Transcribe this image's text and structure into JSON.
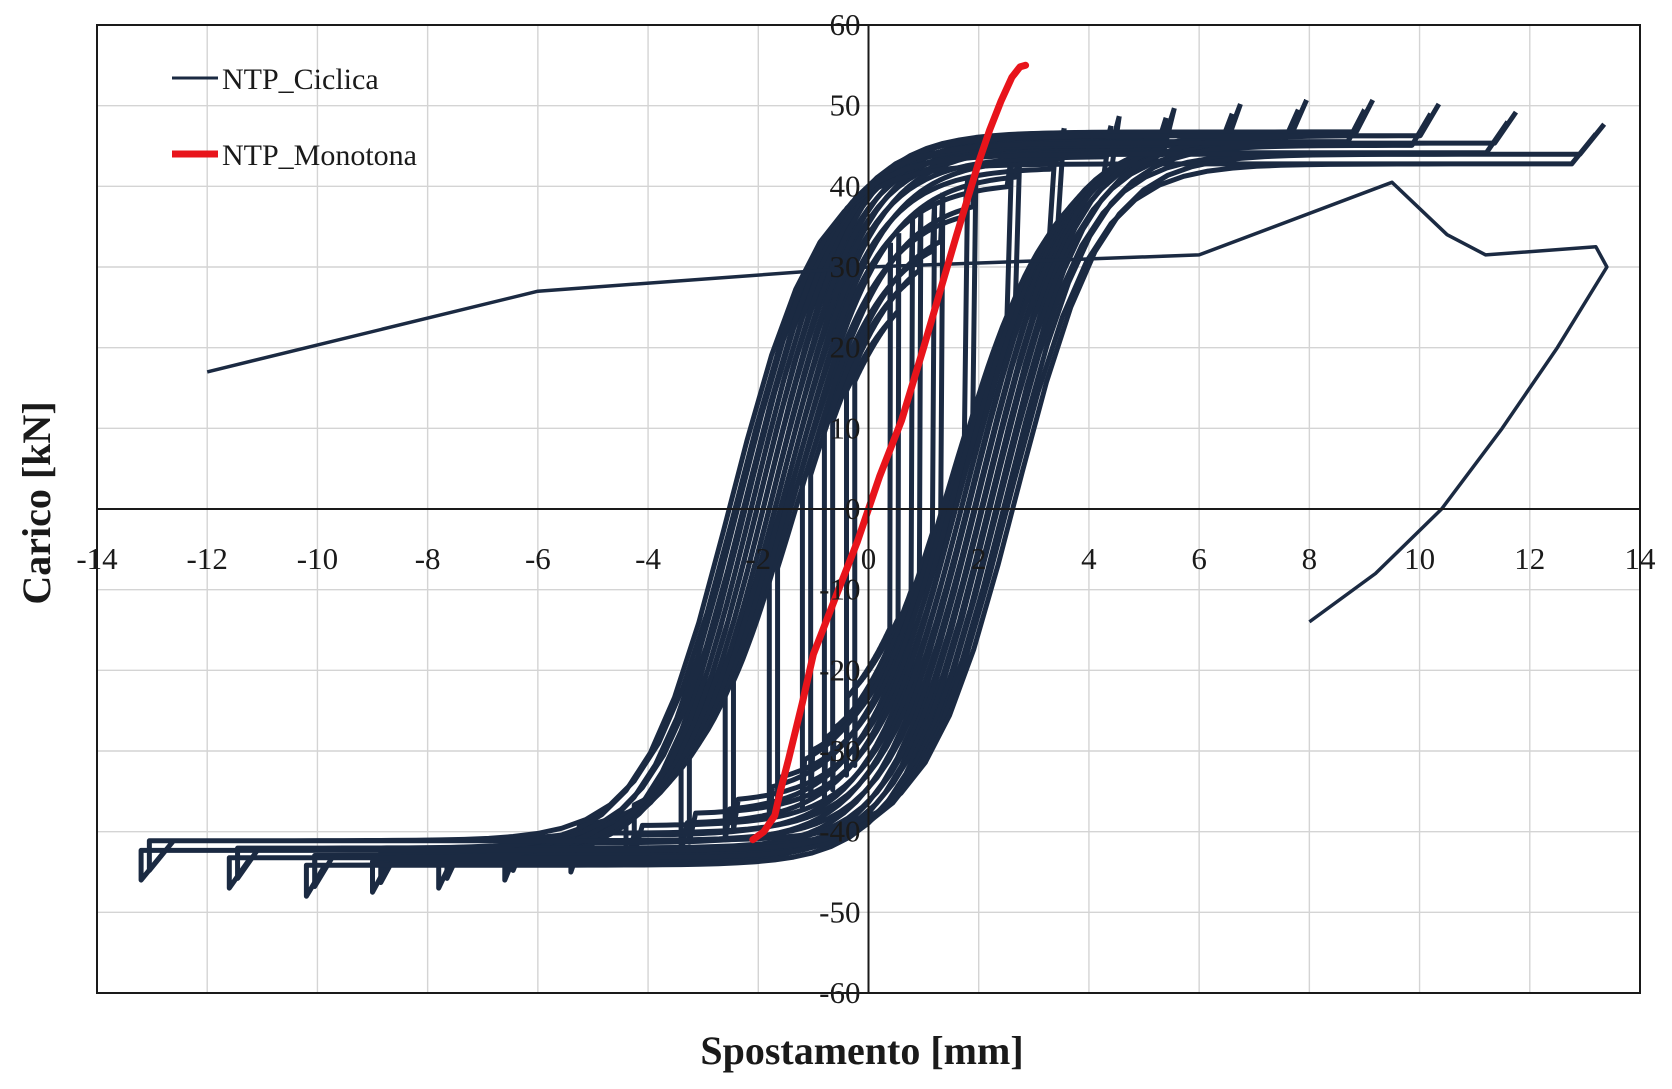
{
  "chart_data": {
    "type": "line",
    "title": "",
    "xlabel": "Spostamento [mm]",
    "ylabel": "Carico [kN]",
    "xlim": [
      -14,
      14
    ],
    "ylim": [
      -60,
      60
    ],
    "xticks": [
      -14,
      -12,
      -10,
      -8,
      -6,
      -4,
      -2,
      0,
      2,
      4,
      6,
      8,
      10,
      12,
      14
    ],
    "yticks": [
      -60,
      -50,
      -40,
      -30,
      -20,
      -10,
      0,
      10,
      20,
      30,
      40,
      50,
      60
    ],
    "x_tick_labels": [
      "-14",
      "-12",
      "-10",
      "-8",
      "-6",
      "-4",
      "-2",
      "0",
      "2",
      "4",
      "6",
      "8",
      "10",
      "12",
      "14"
    ],
    "y_tick_labels": [
      "-60",
      "-50",
      "-40",
      "-30",
      "-20",
      "-10",
      "0",
      "10",
      "20",
      "30",
      "40",
      "50",
      "60"
    ],
    "grid": true,
    "legend_position": "top-left",
    "series": [
      {
        "name": "NTP_Ciclica",
        "color": "#1b2a42",
        "kind": "hysteresis-cycles",
        "cycles": [
          {
            "xmax": 0.4,
            "ymax": 33,
            "xmin": -0.4,
            "ymin": -33
          },
          {
            "xmax": 0.8,
            "ymax": 36,
            "xmin": -0.8,
            "ymin": -36
          },
          {
            "xmax": 1.2,
            "ymax": 38,
            "xmin": -1.2,
            "ymin": -37
          },
          {
            "xmax": 1.8,
            "ymax": 41,
            "xmin": -1.8,
            "ymin": -39
          },
          {
            "xmax": 2.6,
            "ymax": 44,
            "xmin": -2.6,
            "ymin": -41
          },
          {
            "xmax": 3.4,
            "ymax": 46,
            "xmin": -3.4,
            "ymin": -42.5
          },
          {
            "xmax": 4.4,
            "ymax": 47.5,
            "xmin": -4.4,
            "ymin": -44
          },
          {
            "xmax": 5.4,
            "ymax": 48.5,
            "xmin": -5.4,
            "ymin": -45
          },
          {
            "xmax": 6.6,
            "ymax": 49,
            "xmin": -6.6,
            "ymin": -46
          },
          {
            "xmax": 7.8,
            "ymax": 49.5,
            "xmin": -7.8,
            "ymin": -47
          },
          {
            "xmax": 9,
            "ymax": 49.5,
            "xmin": -9,
            "ymin": -47.5
          },
          {
            "xmax": 10.2,
            "ymax": 49,
            "xmin": -10.2,
            "ymin": -48
          },
          {
            "xmax": 11.6,
            "ymax": 48,
            "xmin": -11.6,
            "ymin": -47
          },
          {
            "xmax": 13.2,
            "ymax": 46.5,
            "xmin": -13.2,
            "ymin": -46
          }
        ],
        "final_branch": [
          [
            -12,
            17
          ],
          [
            -6,
            27
          ],
          [
            0,
            30
          ],
          [
            6,
            31.5
          ],
          [
            9.5,
            40.5
          ],
          [
            10.5,
            34
          ],
          [
            11.2,
            31.5
          ],
          [
            13.2,
            32.5
          ],
          [
            13.4,
            30
          ],
          [
            12.5,
            20
          ],
          [
            11.5,
            10
          ],
          [
            10.4,
            0
          ],
          [
            9.2,
            -8
          ],
          [
            8,
            -14
          ]
        ]
      },
      {
        "name": "NTP_Monotona",
        "color": "#e8141b",
        "x": [
          -2.1,
          -1.9,
          -1.7,
          -1.6,
          -1.45,
          -1.2,
          -1.0,
          -0.6,
          -0.2,
          0,
          0.2,
          0.6,
          1.0,
          1.3,
          1.6,
          1.8,
          2.0,
          2.2,
          2.4,
          2.6,
          2.75,
          2.85
        ],
        "y": [
          -41,
          -40,
          -38,
          -35,
          -31,
          -24,
          -18,
          -11,
          -4,
          0,
          4,
          11,
          20,
          27,
          34,
          38.5,
          43,
          47,
          50.5,
          53.5,
          54.8,
          55
        ]
      }
    ]
  }
}
